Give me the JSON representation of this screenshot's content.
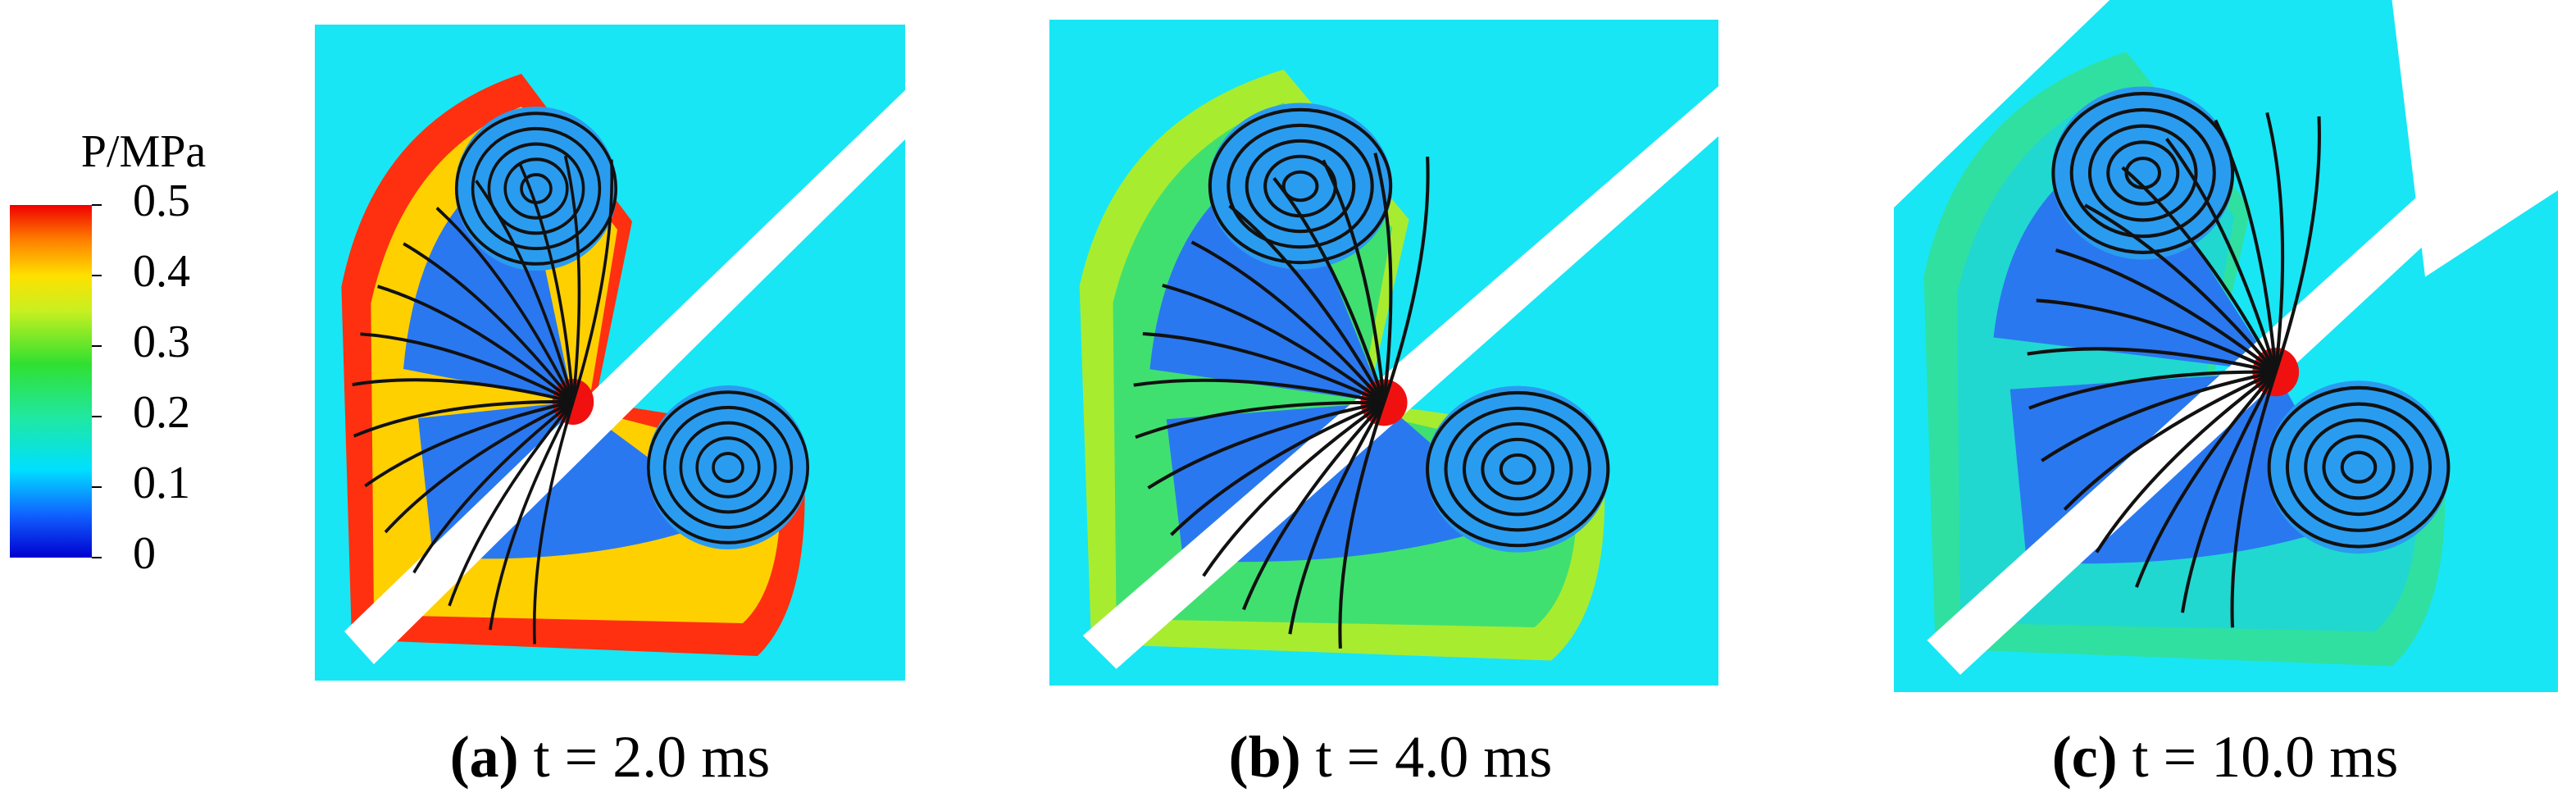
{
  "colorbar": {
    "title": "P/MPa",
    "lim": [
      0,
      0.5
    ],
    "ticks": [
      0.5,
      0.4,
      0.3,
      0.2,
      0.1,
      0
    ]
  },
  "panels": [
    {
      "label": "(a)",
      "caption": "t = 2.0 ms"
    },
    {
      "label": "(b)",
      "caption": "t = 4.0 ms"
    },
    {
      "label": "(c)",
      "caption": "t = 10.0 ms"
    }
  ]
}
